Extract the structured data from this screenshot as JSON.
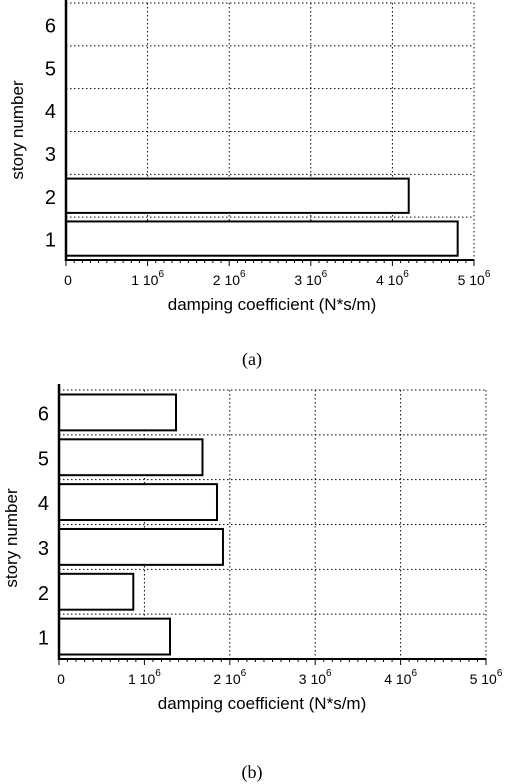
{
  "chart_data": [
    {
      "type": "bar",
      "orientation": "horizontal",
      "categories": [
        "1",
        "2",
        "3",
        "4",
        "5",
        "6"
      ],
      "values": [
        4800000,
        4200000,
        null,
        null,
        null,
        null
      ],
      "xlabel": "damping coefficient (N*s/m)",
      "ylabel": "story number",
      "xlim": [
        0,
        5000000
      ],
      "x_ticks": [
        {
          "base": "0",
          "exp": ""
        },
        {
          "base": "1 10",
          "exp": "6"
        },
        {
          "base": "2 10",
          "exp": "6"
        },
        {
          "base": "3 10",
          "exp": "6"
        },
        {
          "base": "4 10",
          "exp": "6"
        },
        {
          "base": "5 10",
          "exp": "6"
        }
      ],
      "grid": true,
      "caption": "(a)"
    },
    {
      "type": "bar",
      "orientation": "horizontal",
      "categories": [
        "1",
        "2",
        "3",
        "4",
        "5",
        "6"
      ],
      "values": [
        1300000,
        870000,
        1920000,
        1850000,
        1680000,
        1370000
      ],
      "xlabel": "damping coefficient (N*s/m)",
      "ylabel": "story number",
      "xlim": [
        0,
        5000000
      ],
      "x_ticks": [
        {
          "base": "0",
          "exp": ""
        },
        {
          "base": "1 10",
          "exp": "6"
        },
        {
          "base": "2 10",
          "exp": "6"
        },
        {
          "base": "3 10",
          "exp": "6"
        },
        {
          "base": "4 10",
          "exp": "6"
        },
        {
          "base": "5 10",
          "exp": "6"
        }
      ],
      "grid": true,
      "caption": "(b)"
    }
  ]
}
